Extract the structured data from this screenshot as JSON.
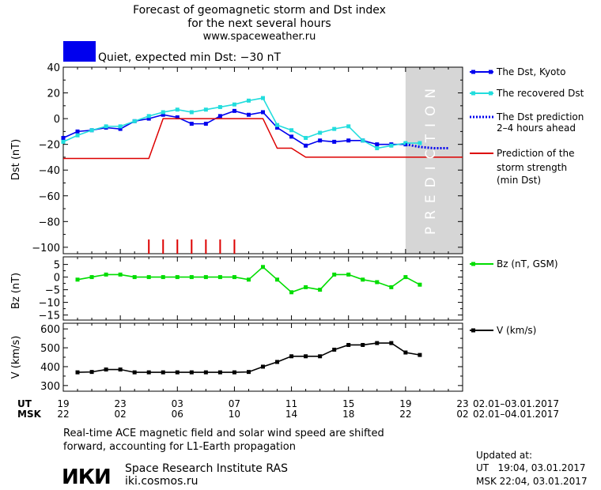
{
  "header": {
    "title_line1": "Forecast of geomagnetic storm and Dst index",
    "title_line2": "for the next several hours",
    "title_line3": "www.spaceweather.ru",
    "status_text": "Quiet, expected min Dst: −30 nT",
    "status_color": "#0000ee"
  },
  "legend": {
    "dst_kyoto": "The Dst, Kyoto",
    "dst_recovered": "The recovered Dst",
    "dst_prediction_l1": "The Dst prediction",
    "dst_prediction_l2": "2–4 hours ahead",
    "storm_l1": "Prediction of the",
    "storm_l2": "storm strength",
    "storm_l3": "(min Dst)",
    "bz": "Bz (nT, GSM)",
    "v": "V (km/s)"
  },
  "prediction_label": "PREDICTION",
  "time_axis": {
    "ut_label": "UT",
    "msk_label": "MSK",
    "ut_ticks": [
      "19",
      "23",
      "03",
      "07",
      "11",
      "15",
      "19",
      "23"
    ],
    "msk_ticks": [
      "22",
      "02",
      "06",
      "10",
      "14",
      "18",
      "22",
      "02"
    ],
    "ut_range": "02.01–03.01.2017",
    "msk_range": "02.01–04.01.2017"
  },
  "footer": {
    "note_line1": "Real-time ACE magnetic field and solar wind speed are shifted",
    "note_line2": "forward, accounting for L1-Earth propagation",
    "logo_text": "ИКИ",
    "institute": "Space Research Institute RAS",
    "website": "iki.cosmos.ru",
    "updated_label": "Updated at:",
    "updated_ut": "UT   19:04, 03.01.2017",
    "updated_msk": "MSK 22:04, 03.01.2017"
  },
  "chart_data": [
    {
      "type": "line",
      "ylabel": "Dst (nT)",
      "ylim": [
        -105,
        40
      ],
      "yticks": [
        40,
        20,
        0,
        -20,
        -40,
        -60,
        -80,
        -100
      ],
      "xlim": [
        0,
        28
      ],
      "prediction_region": [
        24,
        28
      ],
      "series": [
        {
          "name": "The Dst, Kyoto",
          "color": "#0000ee",
          "x": [
            0,
            1,
            2,
            3,
            4,
            5,
            6,
            7,
            8,
            9,
            10,
            11,
            12,
            13,
            14,
            15,
            16,
            17,
            18,
            19,
            20,
            21,
            22,
            23,
            24
          ],
          "y": [
            -15,
            -10,
            -9,
            -7,
            -8,
            -2,
            0,
            3,
            1,
            -4,
            -4,
            2,
            6,
            3,
            5,
            -7,
            -14,
            -21,
            -17,
            -18,
            -17,
            -17,
            -20,
            -20,
            -20
          ]
        },
        {
          "name": "The recovered Dst",
          "color": "#22dddd",
          "x": [
            0,
            1,
            2,
            3,
            4,
            5,
            6,
            7,
            8,
            9,
            10,
            11,
            12,
            13,
            14,
            15,
            16,
            17,
            18,
            19,
            20,
            21,
            22,
            23,
            24,
            25
          ],
          "y": [
            -18,
            -13,
            -9,
            -6,
            -6,
            -2,
            2,
            5,
            7,
            5,
            7,
            9,
            11,
            14,
            16,
            -5,
            -9,
            -15,
            -11,
            -8,
            -6,
            -17,
            -23,
            -21,
            -19,
            -19
          ]
        },
        {
          "name": "The Dst prediction 2–4 hours ahead",
          "color": "#0000ee",
          "x": [
            24,
            25,
            26,
            27
          ],
          "y": [
            -20,
            -22,
            -23,
            -23
          ]
        },
        {
          "name": "Prediction of the storm strength (min Dst)",
          "color": "#dd0000",
          "x": [
            0,
            6,
            7,
            14,
            15,
            16,
            17,
            28
          ],
          "y": [
            -31,
            -31,
            0,
            0,
            -23,
            -23,
            -30,
            -30
          ]
        }
      ],
      "storm_marks_x": [
        6,
        7,
        8,
        9,
        10,
        11,
        12
      ],
      "storm_marks_color": "#dd0000"
    },
    {
      "type": "line",
      "ylabel": "Bz (nT)",
      "ylim": [
        -17,
        8
      ],
      "yticks": [
        5,
        0,
        -5,
        -10,
        -15
      ],
      "series": [
        {
          "name": "Bz (nT, GSM)",
          "color": "#00dd00",
          "x": [
            1,
            2,
            3,
            4,
            5,
            6,
            7,
            8,
            9,
            10,
            11,
            12,
            13,
            14,
            15,
            16,
            17,
            18,
            19,
            20,
            21,
            22,
            23,
            24,
            25
          ],
          "y": [
            -1,
            0,
            1,
            1,
            0,
            0,
            0,
            0,
            0,
            0,
            0,
            0,
            -1,
            4,
            -1,
            -6,
            -4,
            -5,
            1,
            1,
            -1,
            -2,
            -4,
            0,
            -3
          ]
        }
      ]
    },
    {
      "type": "line",
      "ylabel": "V (km/s)",
      "ylim": [
        270,
        630
      ],
      "yticks": [
        600,
        500,
        400,
        300
      ],
      "series": [
        {
          "name": "V (km/s)",
          "color": "#000000",
          "x": [
            1,
            2,
            3,
            4,
            5,
            6,
            7,
            8,
            9,
            10,
            11,
            12,
            13,
            14,
            15,
            16,
            17,
            18,
            19,
            20,
            21,
            22,
            23,
            24,
            25
          ],
          "y": [
            370,
            372,
            385,
            385,
            370,
            370,
            370,
            370,
            370,
            370,
            370,
            370,
            372,
            400,
            425,
            455,
            455,
            455,
            490,
            515,
            515,
            525,
            525,
            475,
            462
          ]
        }
      ]
    }
  ]
}
